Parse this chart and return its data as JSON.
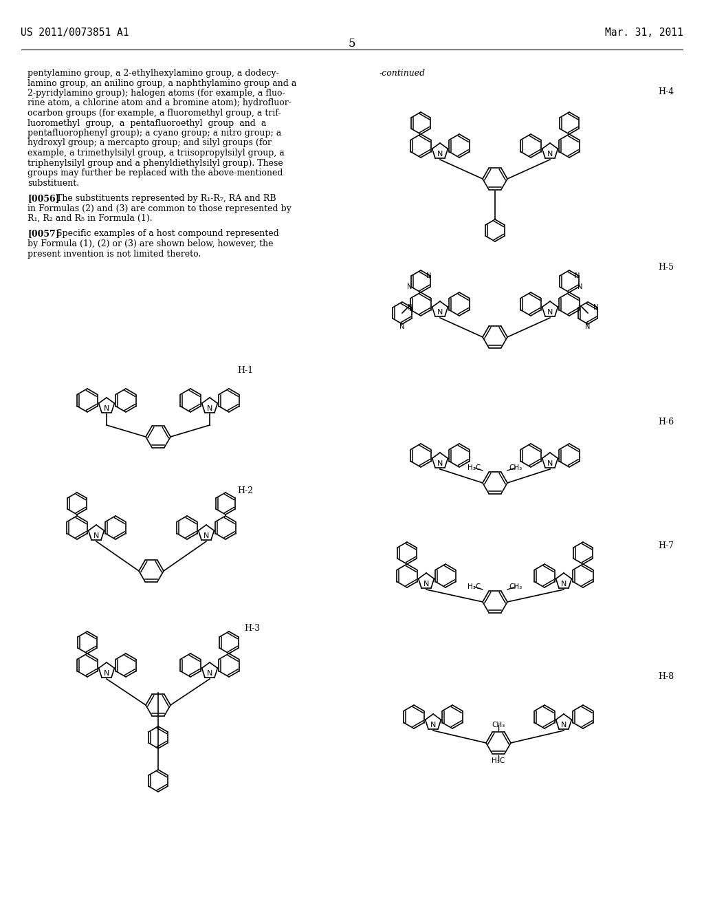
{
  "page_number": "5",
  "patent_number": "US 2011/0073851 A1",
  "date": "Mar. 31, 2011",
  "continued_label": "-continued",
  "left_text": [
    "pentylamino group, a 2-ethylhexylamino group, a dodecy-",
    "lamino group, an anilino group, a naphthylamino group and a",
    "2-pyridylamino group); halogen atoms (for example, a fluo-",
    "rine atom, a chlorine atom and a bromine atom); hydrofluor-",
    "ocarbon groups (for example, a fluoromethyl group, a trif-",
    "luoromethyl  group,  a  pentafluoroethyl  group  and  a",
    "pentafluorophenyl group); a cyano group; a nitro group; a",
    "hydroxyl group; a mercapto group; and silyl groups (for",
    "example, a trimethylsilyl group, a triisopropylsilyl group, a",
    "triphenylsilyl group and a phenyldiethylsilyl group). These",
    "groups may further be replaced with the above-mentioned",
    "substituent."
  ],
  "paragraph_0056": "[0056]   The substituents represented by R₁-R₇, RA and RB in Formulas (2) and (3) are common to those represented by R₁, R₂ and R₅ in Formula (1).",
  "paragraph_0057": "[0057]   Specific examples of a host compound represented by Formula (1), (2) or (3) are shown below, however, the present invention is not limited thereto.",
  "compound_labels": [
    "H-1",
    "H-2",
    "H-3",
    "H-4",
    "H-5",
    "H-6",
    "H-7",
    "H-8"
  ],
  "background_color": "#ffffff",
  "text_color": "#000000",
  "font_size_body": 9.5,
  "font_size_header": 10.5,
  "font_size_page": 12
}
